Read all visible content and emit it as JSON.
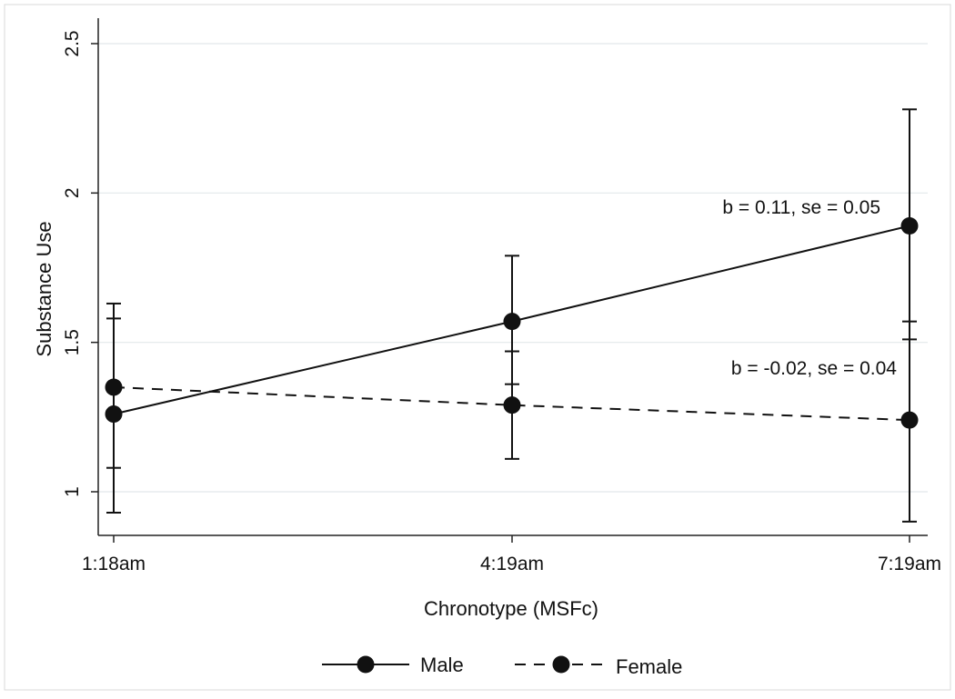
{
  "chart_data": {
    "type": "line",
    "title": "",
    "xlabel": "Chronotype (MSFc)",
    "ylabel": "Substance Use",
    "categories": [
      "1:18am",
      "4:19am",
      "7:19am"
    ],
    "ylim": [
      0.8,
      2.5
    ],
    "yticks": [
      1,
      1.5,
      2,
      2.5
    ],
    "ytick_labels": [
      "1",
      "1.5",
      "2",
      "2.5"
    ],
    "grid": true,
    "legend_position": "bottom",
    "series": [
      {
        "name": "Male",
        "style": "solid",
        "values": [
          1.26,
          1.57,
          1.89
        ],
        "ci_low": [
          0.93,
          1.36,
          1.51
        ],
        "ci_high": [
          1.58,
          1.79,
          2.28
        ]
      },
      {
        "name": "Female",
        "style": "dashed",
        "values": [
          1.35,
          1.29,
          1.24
        ],
        "ci_low": [
          1.08,
          1.11,
          0.9
        ],
        "ci_high": [
          1.63,
          1.47,
          1.57
        ]
      }
    ],
    "annotations": [
      {
        "text": "b = 0.11, se = 0.05",
        "series": "Male"
      },
      {
        "text": "b = -0.02, se = 0.04",
        "series": "Female"
      }
    ]
  }
}
